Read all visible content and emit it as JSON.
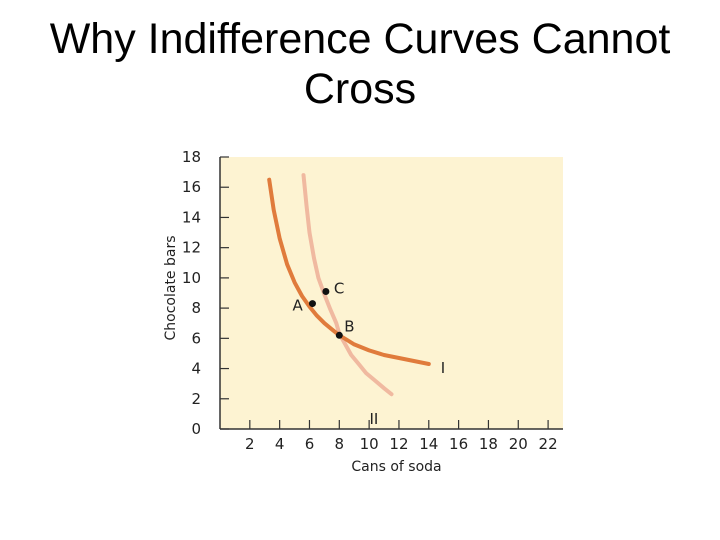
{
  "chart_data": {
    "type": "line",
    "title_lines": [
      "Why Indifference Curves Cannot",
      "Cross"
    ],
    "xlabel": "Cans of soda",
    "ylabel": "Chocolate bars",
    "xlim": [
      0,
      23
    ],
    "ylim": [
      0,
      18
    ],
    "x_ticks": [
      2,
      4,
      6,
      8,
      10,
      12,
      14,
      16,
      18,
      20,
      22
    ],
    "y_ticks": [
      0,
      2,
      4,
      6,
      8,
      10,
      12,
      14,
      16,
      18
    ],
    "grid": false,
    "plot_background": "#fdf3d2",
    "series": [
      {
        "name": "I",
        "color": "#e07b3c",
        "x": [
          3.3,
          3.6,
          4.0,
          4.5,
          5.0,
          5.5,
          6.0,
          6.5,
          7.0,
          7.5,
          8.0,
          8.5,
          9.0,
          10.0,
          11.0,
          12.0,
          13.0,
          14.0
        ],
        "y": [
          16.5,
          14.5,
          12.6,
          10.9,
          9.7,
          8.8,
          8.1,
          7.5,
          7.0,
          6.6,
          6.2,
          5.9,
          5.6,
          5.2,
          4.9,
          4.7,
          4.5,
          4.3
        ]
      },
      {
        "name": "II",
        "color": "#f0b9a0",
        "x": [
          5.6,
          5.8,
          6.0,
          6.3,
          6.6,
          7.0,
          7.4,
          7.8,
          8.0,
          8.4,
          8.8,
          9.3,
          9.8,
          10.4,
          11.0,
          11.5
        ],
        "y": [
          16.8,
          14.8,
          13.0,
          11.3,
          10.0,
          8.9,
          7.9,
          7.0,
          6.3,
          5.6,
          4.9,
          4.3,
          3.7,
          3.2,
          2.7,
          2.3
        ]
      }
    ],
    "points": [
      {
        "label": "A",
        "x": 6.2,
        "y": 8.3
      },
      {
        "label": "B",
        "x": 8.0,
        "y": 6.2
      },
      {
        "label": "C",
        "x": 7.1,
        "y": 9.1
      }
    ]
  }
}
